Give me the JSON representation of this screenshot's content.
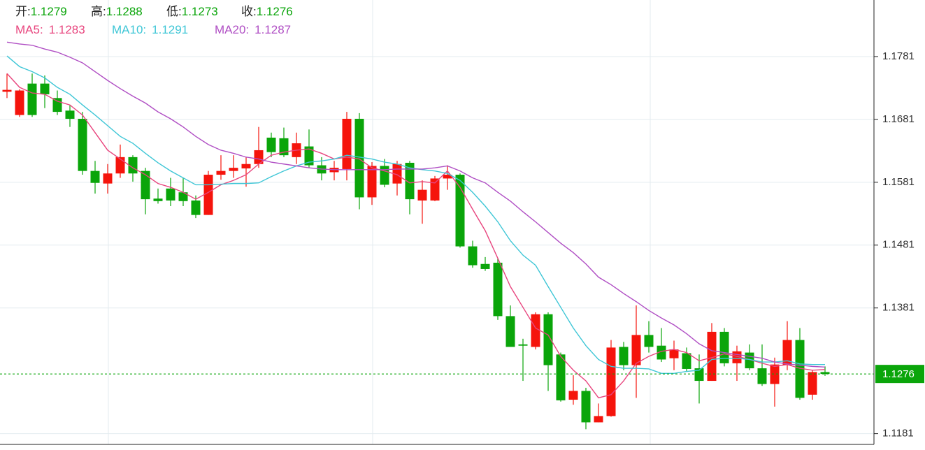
{
  "chart_data": {
    "type": "candlestick",
    "header_labels": [
      "开:",
      "高:",
      "低:",
      "收:"
    ],
    "up_color": "#f5140c",
    "down_color": "#0aa50a",
    "ylim": [
      1.1165,
      1.1871
    ],
    "yticks": [
      1.1781,
      1.1681,
      1.1581,
      1.1481,
      1.1381,
      1.1181
    ],
    "grid": true,
    "open": [
      1.1725,
      1.1688,
      1.1738,
      1.1738,
      1.1715,
      1.1695,
      1.1682,
      1.1599,
      1.1579,
      1.1595,
      1.1621,
      1.1599,
      1.1555,
      1.1571,
      1.1565,
      1.1552,
      1.1529,
      1.1593,
      1.1599,
      1.1603,
      1.161,
      1.1652,
      1.1651,
      1.1621,
      1.1638,
      1.1608,
      1.1597,
      1.1602,
      1.1682,
      1.1557,
      1.1607,
      1.1579,
      1.1612,
      1.1552,
      1.1552,
      1.1587,
      1.1593,
      1.1479,
      1.1451,
      1.1453,
      1.1368,
      1.1323,
      1.1319,
      1.1371,
      1.1307,
      1.1235,
      1.1249,
      1.1199,
      1.1209,
      1.1319,
      1.129,
      1.1338,
      1.1321,
      1.1301,
      1.1309,
      1.1285,
      1.1265,
      1.1343,
      1.1293,
      1.131,
      1.1285,
      1.126,
      1.129,
      1.133,
      1.1243,
      1.1279
    ],
    "high": [
      1.1754,
      1.1729,
      1.1754,
      1.1751,
      1.1727,
      1.1704,
      1.1693,
      1.1615,
      1.161,
      1.1641,
      1.1624,
      1.1604,
      1.1571,
      1.1588,
      1.1588,
      1.156,
      1.1599,
      1.1624,
      1.1624,
      1.1621,
      1.1669,
      1.166,
      1.1668,
      1.166,
      1.1665,
      1.1621,
      1.1615,
      1.1693,
      1.1691,
      1.1613,
      1.1618,
      1.1615,
      1.1615,
      1.1584,
      1.1591,
      1.1608,
      1.1595,
      1.1488,
      1.1462,
      1.146,
      1.1385,
      1.1332,
      1.1374,
      1.1374,
      1.131,
      1.1274,
      1.1254,
      1.1229,
      1.133,
      1.1327,
      1.1385,
      1.136,
      1.1349,
      1.1329,
      1.1318,
      1.1307,
      1.1357,
      1.1349,
      1.1321,
      1.1323,
      1.1323,
      1.1302,
      1.136,
      1.1349,
      1.1282,
      1.1288
    ],
    "low": [
      1.1715,
      1.1685,
      1.1685,
      1.1699,
      1.1688,
      1.1669,
      1.1593,
      1.1563,
      1.1563,
      1.1588,
      1.1582,
      1.153,
      1.1547,
      1.1543,
      1.1543,
      1.1524,
      1.1529,
      1.1585,
      1.1588,
      1.1574,
      1.1604,
      1.1621,
      1.1621,
      1.161,
      1.1604,
      1.1584,
      1.1584,
      1.1584,
      1.1538,
      1.1545,
      1.1573,
      1.156,
      1.153,
      1.1515,
      1.1551,
      1.1569,
      1.1477,
      1.1445,
      1.144,
      1.1362,
      1.1319,
      1.1265,
      1.1315,
      1.1249,
      1.1232,
      1.1227,
      1.1188,
      1.1199,
      1.1208,
      1.1282,
      1.1238,
      1.131,
      1.1295,
      1.1282,
      1.128,
      1.1229,
      1.1265,
      1.1288,
      1.1265,
      1.1282,
      1.1257,
      1.1224,
      1.1282,
      1.1235,
      1.1235,
      1.1273
    ],
    "close": [
      1.1728,
      1.1727,
      1.1688,
      1.1721,
      1.1693,
      1.1682,
      1.1599,
      1.158,
      1.1595,
      1.1621,
      1.1595,
      1.1554,
      1.1551,
      1.1552,
      1.1551,
      1.1529,
      1.1593,
      1.1599,
      1.1604,
      1.161,
      1.1632,
      1.1629,
      1.1624,
      1.1643,
      1.1608,
      1.1595,
      1.1604,
      1.1682,
      1.1557,
      1.1607,
      1.1577,
      1.161,
      1.1554,
      1.1569,
      1.1587,
      1.1593,
      1.1479,
      1.1449,
      1.1443,
      1.1368,
      1.1319,
      1.1321,
      1.1371,
      1.129,
      1.1234,
      1.1249,
      1.1199,
      1.1209,
      1.1318,
      1.129,
      1.1338,
      1.1319,
      1.1299,
      1.1315,
      1.1284,
      1.1265,
      1.1343,
      1.1293,
      1.1312,
      1.1285,
      1.126,
      1.1291,
      1.133,
      1.1238,
      1.1279,
      1.1276
    ],
    "ma_series": [
      {
        "name": "MA5:",
        "color": "#e8457e",
        "values": [
          1.1754,
          1.1732,
          1.1723,
          1.1721,
          1.171,
          1.1704,
          1.1688,
          1.166,
          1.1632,
          1.1618,
          1.1604,
          1.1593,
          1.1579,
          1.1573,
          1.1565,
          1.1554,
          1.1565,
          1.1577,
          1.1584,
          1.1593,
          1.161,
          1.1624,
          1.1629,
          1.1632,
          1.1634,
          1.1627,
          1.1618,
          1.1621,
          1.1618,
          1.1604,
          1.1599,
          1.1593,
          1.158,
          1.1582,
          1.158,
          1.1599,
          1.1573,
          1.1538,
          1.1504,
          1.146,
          1.1415,
          1.1382,
          1.1349,
          1.1338,
          1.1304,
          1.1282,
          1.1265,
          1.1238,
          1.1243,
          1.1265,
          1.1293,
          1.1304,
          1.1312,
          1.1315,
          1.131,
          1.1297,
          1.1302,
          1.1308,
          1.1304,
          1.1299,
          1.1293,
          1.1288,
          1.1291,
          1.1285,
          1.1282,
          1.1283
        ]
      },
      {
        "name": "MA10:",
        "color": "#3ec6d6",
        "values": [
          1.1782,
          1.1765,
          1.1757,
          1.1747,
          1.1732,
          1.1721,
          1.1704,
          1.1688,
          1.1671,
          1.1654,
          1.1643,
          1.1627,
          1.1612,
          1.1599,
          1.1588,
          1.1577,
          1.1577,
          1.1578,
          1.1579,
          1.1579,
          1.158,
          1.159,
          1.1599,
          1.1607,
          1.1613,
          1.1615,
          1.1618,
          1.1624,
          1.1621,
          1.1618,
          1.1613,
          1.161,
          1.1604,
          1.1601,
          1.1599,
          1.1595,
          1.1584,
          1.1565,
          1.1543,
          1.1518,
          1.1488,
          1.1465,
          1.1449,
          1.1415,
          1.1382,
          1.1349,
          1.1321,
          1.1299,
          1.1288,
          1.1285,
          1.1285,
          1.1284,
          1.1277,
          1.1277,
          1.128,
          1.1282,
          1.1299,
          1.1301,
          1.1301,
          1.1299,
          1.1295,
          1.1295,
          1.1297,
          1.1292,
          1.1291,
          1.1291
        ]
      },
      {
        "name": "MA20:",
        "color": "#b04fc4",
        "values": [
          1.1804,
          1.1801,
          1.1799,
          1.1793,
          1.1788,
          1.178,
          1.1771,
          1.1757,
          1.1743,
          1.173,
          1.1718,
          1.1707,
          1.1693,
          1.1682,
          1.1669,
          1.1654,
          1.1641,
          1.1632,
          1.1627,
          1.1621,
          1.1618,
          1.1613,
          1.161,
          1.1607,
          1.1604,
          1.1602,
          1.1601,
          1.1601,
          1.1601,
          1.1601,
          1.1601,
          1.1602,
          1.1602,
          1.1602,
          1.1604,
          1.1607,
          1.1599,
          1.1588,
          1.158,
          1.1565,
          1.1551,
          1.1534,
          1.1518,
          1.1501,
          1.1484,
          1.1469,
          1.1451,
          1.143,
          1.1418,
          1.1404,
          1.1391,
          1.1377,
          1.1365,
          1.1354,
          1.134,
          1.1324,
          1.1313,
          1.131,
          1.1307,
          1.1304,
          1.1301,
          1.1295,
          1.1292,
          1.129,
          1.1288,
          1.1287
        ]
      }
    ]
  }
}
